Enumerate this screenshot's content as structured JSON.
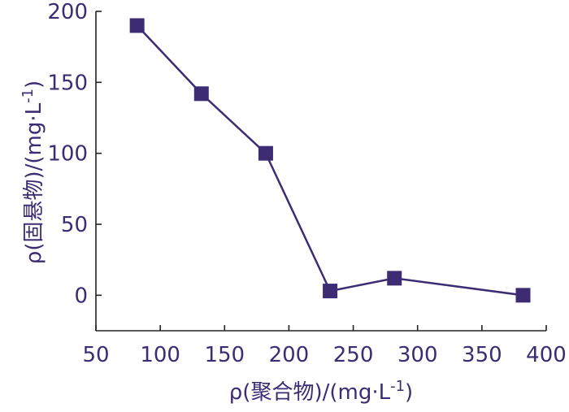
{
  "chart_data": {
    "type": "line",
    "x": [
      82,
      132,
      182,
      232,
      282,
      382
    ],
    "y": [
      190,
      142,
      100,
      3,
      12,
      0
    ],
    "xlim": [
      50,
      400
    ],
    "ylim": [
      -25,
      200
    ],
    "xticks": [
      50,
      100,
      150,
      200,
      250,
      300,
      350,
      400
    ],
    "yticks": [
      0,
      50,
      100,
      150,
      200
    ],
    "xlabel": "ρ(聚合物)/(mg·L-1)",
    "ylabel": "ρ(固悬物)/(mg·L-1)",
    "grid": false,
    "marker": "square",
    "colors": {
      "series": "#3d2c74",
      "axis": "#222222",
      "text": "#3d2c74"
    }
  },
  "axes": {
    "x_label": {
      "prefix": "ρ(聚合物)/(mg·L",
      "sup": "-1",
      "suffix": ")"
    },
    "y_label": {
      "prefix": "ρ(固悬物)/(mg·L",
      "sup": "-1",
      "suffix": ")"
    }
  }
}
